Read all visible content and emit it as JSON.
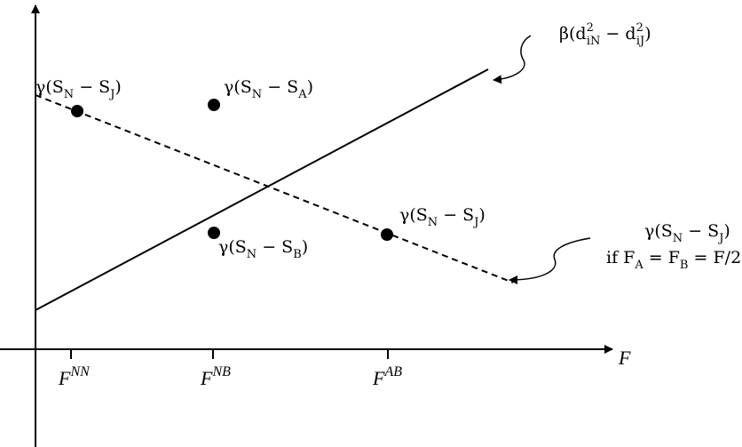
{
  "axis": {
    "x_label": "F",
    "ticks": [
      {
        "base": "F",
        "sup": "NN"
      },
      {
        "base": "F",
        "sup": "NB"
      },
      {
        "base": "F",
        "sup": "AB"
      }
    ]
  },
  "labels": [
    {
      "parts": [
        {
          "main": "γ(S"
        },
        {
          "sub": "N"
        },
        {
          "main": " − S"
        },
        {
          "sub": "J"
        },
        {
          "main": ")"
        }
      ]
    },
    {
      "parts": [
        {
          "main": "γ(S"
        },
        {
          "sub": "N"
        },
        {
          "main": " − S"
        },
        {
          "sub": "A"
        },
        {
          "main": ")"
        }
      ]
    },
    {
      "parts": [
        {
          "main": "γ(S"
        },
        {
          "sub": "N"
        },
        {
          "main": " − S"
        },
        {
          "sub": "B"
        },
        {
          "main": ")"
        }
      ]
    },
    {
      "parts": [
        {
          "main": "γ(S"
        },
        {
          "sub": "N"
        },
        {
          "main": " − S"
        },
        {
          "sub": "J"
        },
        {
          "main": ")"
        }
      ]
    },
    {
      "parts": [
        {
          "main": "γ(S"
        },
        {
          "sub": "N"
        },
        {
          "main": " − S"
        },
        {
          "sub": "J"
        },
        {
          "main": ")"
        }
      ]
    },
    {
      "parts": [
        {
          "main": "if F"
        },
        {
          "sub": "A"
        },
        {
          "main": " = F"
        },
        {
          "sub": "B"
        },
        {
          "main": " = F/2"
        }
      ]
    },
    {
      "parts": [
        {
          "main": "β(d"
        },
        {
          "sup": "2"
        },
        {
          "sub": "iN"
        },
        {
          "main": " − d"
        },
        {
          "sup": "2"
        },
        {
          "sub": "iJ"
        },
        {
          "main": ")"
        }
      ]
    }
  ]
}
